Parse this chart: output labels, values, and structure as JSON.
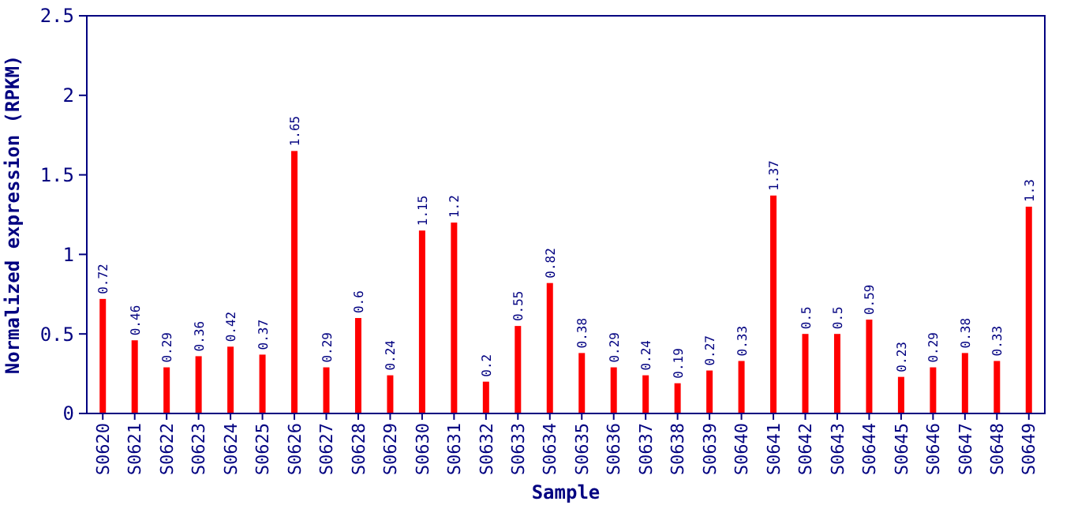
{
  "chart_data": {
    "type": "bar",
    "xlabel": "Sample",
    "ylabel": "Normalized expression (RPKM)",
    "categories": [
      "S0620",
      "S0621",
      "S0622",
      "S0623",
      "S0624",
      "S0625",
      "S0626",
      "S0627",
      "S0628",
      "S0629",
      "S0630",
      "S0631",
      "S0632",
      "S0633",
      "S0634",
      "S0635",
      "S0636",
      "S0637",
      "S0638",
      "S0639",
      "S0640",
      "S0641",
      "S0642",
      "S0643",
      "S0644",
      "S0645",
      "S0646",
      "S0647",
      "S0648",
      "S0649"
    ],
    "values": [
      0.72,
      0.46,
      0.29,
      0.36,
      0.42,
      0.37,
      1.65,
      0.29,
      0.6,
      0.24,
      1.15,
      1.2,
      0.2,
      0.55,
      0.82,
      0.38,
      0.29,
      0.24,
      0.19,
      0.27,
      0.33,
      1.37,
      0.5,
      0.5,
      0.59,
      0.23,
      0.29,
      0.38,
      0.33,
      1.3
    ],
    "color": "#ff0000",
    "ylim": [
      0,
      2.5
    ],
    "yticks": [
      0,
      0.5,
      1,
      1.5,
      2,
      2.5
    ],
    "data_labels": true
  }
}
